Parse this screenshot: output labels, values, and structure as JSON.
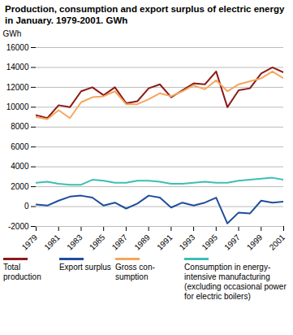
{
  "chart_data": {
    "type": "line",
    "title": "Production, consumption and export surplus of electric energy in January. 1979-2001. GWh",
    "ylabel": "GWh",
    "x": [
      1979,
      1980,
      1981,
      1982,
      1983,
      1984,
      1985,
      1986,
      1987,
      1988,
      1989,
      1990,
      1991,
      1992,
      1993,
      1994,
      1995,
      1996,
      1997,
      1998,
      1999,
      2000,
      2001
    ],
    "xlim": [
      1979,
      2001
    ],
    "xticks": [
      1979,
      1981,
      1983,
      1985,
      1987,
      1989,
      1991,
      1993,
      1995,
      1997,
      1999,
      2001
    ],
    "ylim": [
      -2000,
      16000
    ],
    "yticks": [
      -2000,
      0,
      2000,
      4000,
      6000,
      8000,
      10000,
      12000,
      14000,
      16000
    ],
    "grid": true,
    "legend": "bottom",
    "series": [
      {
        "name": "Total production",
        "color": "#8c1a1a",
        "values": [
          9200,
          8900,
          10200,
          10000,
          11600,
          12000,
          11200,
          12000,
          10400,
          10600,
          11900,
          12300,
          11000,
          11700,
          12400,
          12300,
          13600,
          10000,
          11700,
          11900,
          13400,
          14000,
          13500
        ]
      },
      {
        "name": "Export surplus",
        "color": "#1f4e9c",
        "values": [
          200,
          100,
          600,
          1000,
          1100,
          900,
          100,
          400,
          -200,
          300,
          1100,
          900,
          -100,
          400,
          100,
          400,
          900,
          -1700,
          -600,
          -700,
          600,
          400,
          500
        ]
      },
      {
        "name": "Gross con-sumption",
        "color": "#f5a65b",
        "values": [
          9000,
          8800,
          9700,
          8900,
          10500,
          11000,
          11100,
          11600,
          10300,
          10300,
          10800,
          11400,
          11100,
          11600,
          12200,
          11800,
          12700,
          11600,
          12300,
          12600,
          12900,
          13600,
          12900
        ]
      },
      {
        "name": "Consumption in energy-intensive manufacturing (excluding occasional power for electric boilers)",
        "color": "#3cbfb4",
        "values": [
          2400,
          2500,
          2300,
          2200,
          2200,
          2700,
          2600,
          2400,
          2400,
          2600,
          2600,
          2500,
          2300,
          2300,
          2400,
          2500,
          2400,
          2400,
          2600,
          2700,
          2800,
          2900,
          2700
        ]
      }
    ]
  }
}
